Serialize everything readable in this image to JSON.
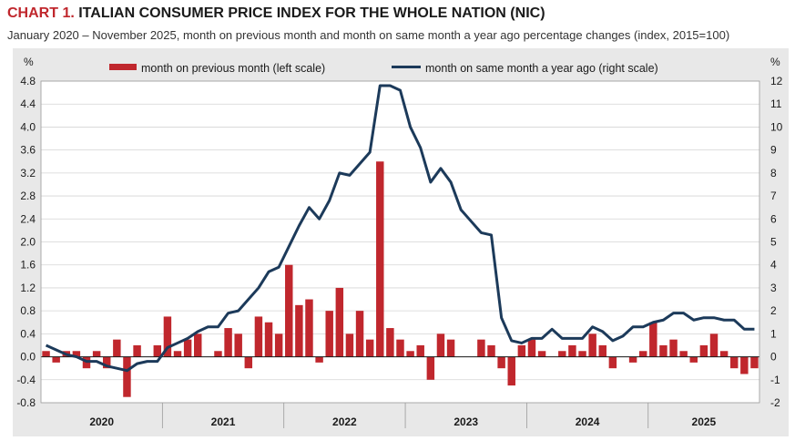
{
  "header": {
    "title_lead": "CHART 1.",
    "title_rest": "ITALIAN CONSUMER PRICE INDEX FOR THE WHOLE NATION (NIC)",
    "subtitle": "January 2020 – November 2025, month on previous month and month on same month a year ago percentage changes (index, 2015=100)"
  },
  "colors": {
    "bar": "#c0272d",
    "line": "#1c3a5a",
    "panel_bg": "#e8e8e8",
    "plot_bg": "#ffffff"
  },
  "chart_data": {
    "type": "bar+line",
    "left_unit": "%",
    "right_unit": "%",
    "left_ylim": [
      -0.8,
      4.8
    ],
    "right_ylim": [
      -2,
      12
    ],
    "left_ticks": [
      "4.8",
      "4.4",
      "4.0",
      "3.6",
      "3.2",
      "2.8",
      "2.4",
      "2.0",
      "1.6",
      "1.2",
      "0.8",
      "0.4",
      "0.0",
      "-0.4",
      "-0.8"
    ],
    "right_ticks": [
      "12",
      "11",
      "10",
      "9",
      "8",
      "7",
      "6",
      "5",
      "4",
      "3",
      "2",
      "1",
      "0",
      "-1",
      "-2"
    ],
    "years": [
      "2020",
      "2021",
      "2022",
      "2023",
      "2024",
      "2025"
    ],
    "months_count": 71,
    "legend": {
      "bar_label": "month on previous month (left scale)",
      "line_label": "month on same month a year ago (right scale)"
    },
    "series": [
      {
        "name": "month on previous month (left scale)",
        "type": "bar",
        "axis": "left",
        "values": [
          0.1,
          -0.1,
          0.1,
          0.1,
          -0.2,
          0.1,
          -0.2,
          0.3,
          -0.7,
          0.2,
          0.0,
          0.2,
          0.7,
          0.1,
          0.3,
          0.4,
          0.0,
          0.1,
          0.5,
          0.4,
          -0.2,
          0.7,
          0.6,
          0.4,
          1.6,
          0.9,
          1.0,
          -0.1,
          0.8,
          1.2,
          0.4,
          0.8,
          0.3,
          3.4,
          0.5,
          0.3,
          0.1,
          0.2,
          -0.4,
          0.4,
          0.3,
          0.0,
          0.0,
          0.3,
          0.2,
          -0.2,
          -0.5,
          0.2,
          0.3,
          0.1,
          0.0,
          0.1,
          0.2,
          0.1,
          0.4,
          0.2,
          -0.2,
          0.0,
          -0.1,
          0.1,
          0.6,
          0.2,
          0.3,
          0.1,
          -0.1,
          0.2,
          0.4,
          0.1,
          -0.2,
          -0.3,
          -0.2
        ]
      },
      {
        "name": "month on same month a year ago (right scale)",
        "type": "line",
        "axis": "right",
        "values": [
          0.5,
          0.3,
          0.1,
          0.0,
          -0.2,
          -0.2,
          -0.4,
          -0.5,
          -0.6,
          -0.3,
          -0.2,
          -0.2,
          0.4,
          0.6,
          0.8,
          1.1,
          1.3,
          1.3,
          1.9,
          2.0,
          2.5,
          3.0,
          3.7,
          3.9,
          4.8,
          5.7,
          6.5,
          6.0,
          6.8,
          8.0,
          7.9,
          8.4,
          8.9,
          11.8,
          11.8,
          11.6,
          10.0,
          9.1,
          7.6,
          8.2,
          7.6,
          6.4,
          5.9,
          5.4,
          5.3,
          1.7,
          0.7,
          0.6,
          0.8,
          0.8,
          1.2,
          0.8,
          0.8,
          0.8,
          1.3,
          1.1,
          0.7,
          0.9,
          1.3,
          1.3,
          1.5,
          1.6,
          1.9,
          1.9,
          1.6,
          1.7,
          1.7,
          1.6,
          1.6,
          1.2,
          1.2
        ]
      }
    ]
  }
}
